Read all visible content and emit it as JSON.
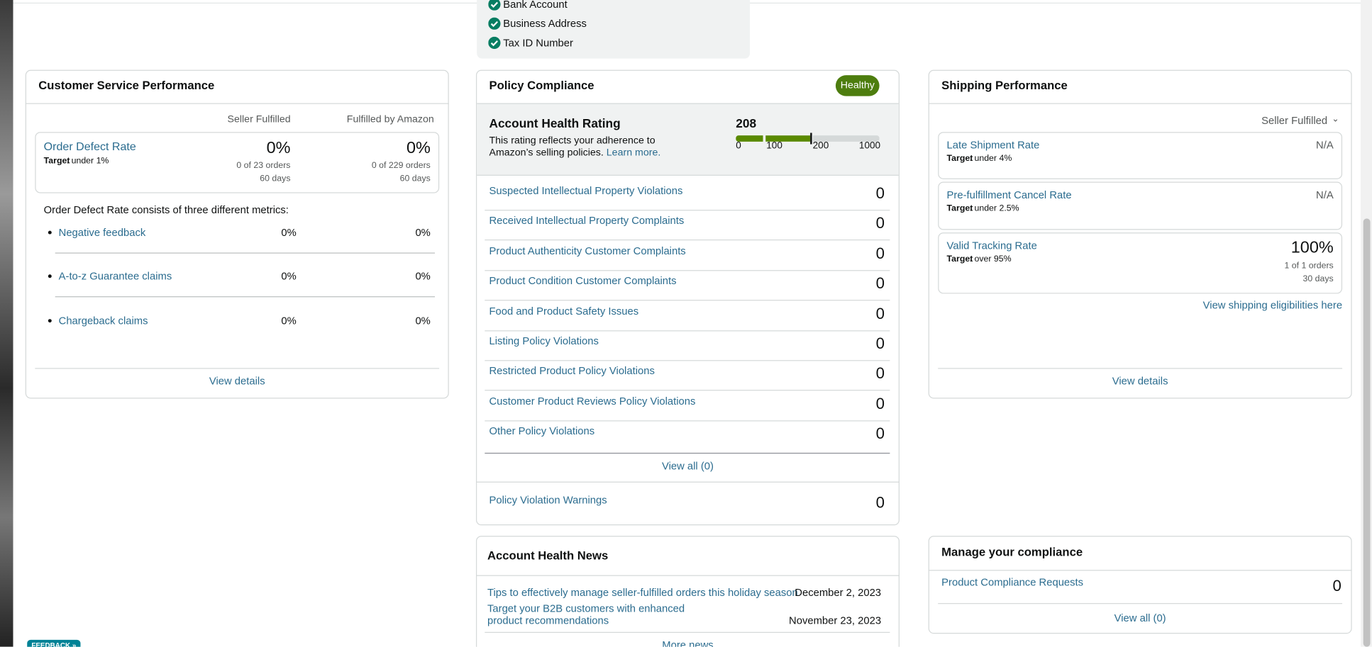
{
  "verification": {
    "items": [
      "Bank Account",
      "Business Address",
      "Tax ID Number"
    ]
  },
  "customer_service": {
    "title": "Customer Service Performance",
    "columns": [
      "Seller Fulfilled",
      "Fulfilled by Amazon"
    ],
    "metric": {
      "name": "Order Defect Rate",
      "target_label": "Target",
      "target": ": under 1%",
      "values": [
        "0%",
        "0%"
      ],
      "orders": [
        "0 of 23 orders",
        "0 of 229 orders"
      ],
      "period": [
        "60 days",
        "60 days"
      ]
    },
    "intro": "Order Defect Rate consists of three different metrics:",
    "sub_metrics": [
      {
        "name": "Negative feedback",
        "values": [
          "0%",
          "0%"
        ]
      },
      {
        "name": "A-to-z Guarantee claims",
        "values": [
          "0%",
          "0%"
        ]
      },
      {
        "name": "Chargeback claims",
        "values": [
          "0%",
          "0%"
        ]
      }
    ],
    "link": "View details"
  },
  "policy_compliance": {
    "title": "Policy Compliance",
    "status": "Healthy",
    "rating": {
      "title": "Account Health Rating",
      "score": 208,
      "description": "This rating reflects your adherence to Amazon’s selling policies.",
      "link": "Learn more.",
      "scale": [
        0,
        100,
        200,
        1000
      ]
    },
    "rows": [
      {
        "name": "Suspected Intellectual Property Violations",
        "count": 0
      },
      {
        "name": "Received Intellectual Property Complaints",
        "count": 0
      },
      {
        "name": "Product Authenticity Customer Complaints",
        "count": 0
      },
      {
        "name": "Product Condition Customer Complaints",
        "count": 0
      },
      {
        "name": "Food and Product Safety Issues",
        "count": 0
      },
      {
        "name": "Listing Policy Violations",
        "count": 0
      },
      {
        "name": "Restricted Product Policy Violations",
        "count": 0
      },
      {
        "name": "Customer Product Reviews Policy Violations",
        "count": 0
      },
      {
        "name": "Other Policy Violations",
        "count": 0
      }
    ],
    "view_all": "View all (0)",
    "warnings": {
      "name": "Policy Violation Warnings",
      "count": 0
    }
  },
  "shipping": {
    "title": "Shipping Performance",
    "filter": "Seller Fulfilled",
    "metrics": [
      {
        "name": "Late Shipment Rate",
        "target_label": "Target",
        "target": ": under 4%",
        "value": "N/A"
      },
      {
        "name": "Pre-fulfillment Cancel Rate",
        "target_label": "Target",
        "target": ": under 2.5%",
        "value": "N/A"
      },
      {
        "name": "Valid Tracking Rate",
        "target_label": "Target",
        "target": ": over 95%",
        "value": "100%",
        "orders": "1 of 1 orders",
        "period": "30 days"
      }
    ],
    "eligibility_link": "View shipping eligibilities here",
    "link": "View details"
  },
  "news": {
    "title": "Account Health News",
    "items": [
      {
        "title": "Tips to effectively manage seller-fulfilled orders this holiday season",
        "date": "December 2, 2023"
      },
      {
        "title": "Target your B2B customers with enhanced product recommendations",
        "date": "November 23, 2023"
      }
    ],
    "more": "More news"
  },
  "manage_compliance": {
    "title": "Manage your compliance",
    "rows": [
      {
        "name": "Product Compliance Requests",
        "count": 0
      }
    ],
    "view_all": "View all (0)"
  },
  "feedback": "FEEDBACK »"
}
